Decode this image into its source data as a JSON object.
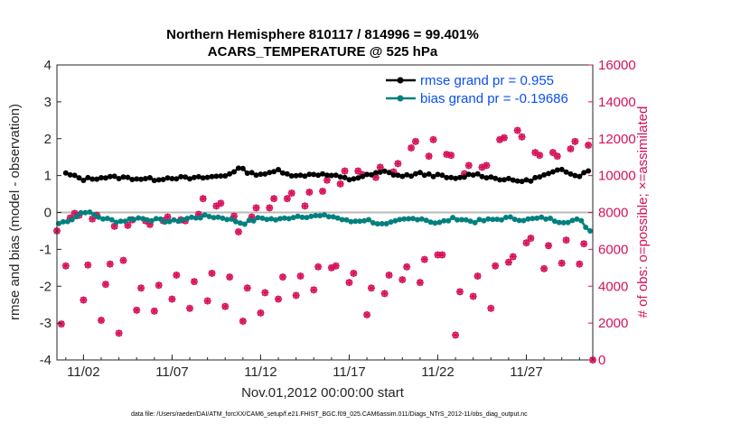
{
  "colors": {
    "rmse": "#000000",
    "bias": "#00807f",
    "obs": "#d6105a",
    "legend_text": "#0b4ff2",
    "zero_line": "#bbbbbb"
  },
  "chart_data": {
    "type": "line",
    "title": [
      "Northern Hemisphere 810117 / 814996 = 99.401%",
      "ACARS_TEMPERATURE @ 525 hPa"
    ],
    "xlabel": "Nov.01,2012 00:00:00 start",
    "ylabel_left": "rmse and bias (model - observation)",
    "ylabel_right": "# of obs: o=possible; ×=assimilated",
    "footnote": "data file: /Users/raeder/DAI/ATM_forcXX/CAM6_setup/f.e21.FHIST_BGC.f09_025.CAM6assim.011/Diags_NTrS_2012-11/obs_diag_output.nc",
    "xlim": [
      0.5,
      30.75
    ],
    "ylim_left": [
      -4,
      4
    ],
    "ylim_right": [
      0,
      16000
    ],
    "xticks": [
      {
        "value": 2,
        "label": "11/02"
      },
      {
        "value": 7,
        "label": "11/07"
      },
      {
        "value": 12,
        "label": "11/12"
      },
      {
        "value": 17,
        "label": "11/17"
      },
      {
        "value": 22,
        "label": "11/22"
      },
      {
        "value": 27,
        "label": "11/27"
      }
    ],
    "yticks_left": [
      "4",
      "3",
      "2",
      "1",
      "0",
      "-1",
      "-2",
      "-3",
      "-4"
    ],
    "yticks_right": [
      "16000",
      "14000",
      "12000",
      "10000",
      "8000",
      "6000",
      "4000",
      "2000",
      "0"
    ],
    "series": [
      {
        "name": "rmse",
        "legend": "rmse grand pr = 0.955",
        "axis": "left",
        "anchors": [
          [
            1,
            1.05
          ],
          [
            2,
            0.9
          ],
          [
            3,
            0.95
          ],
          [
            4,
            0.95
          ],
          [
            5,
            0.92
          ],
          [
            6,
            0.9
          ],
          [
            7,
            0.95
          ],
          [
            8,
            0.92
          ],
          [
            9,
            0.95
          ],
          [
            10,
            1.0
          ],
          [
            10.8,
            1.2
          ],
          [
            11.5,
            1.05
          ],
          [
            12.5,
            1.05
          ],
          [
            13,
            1.15
          ],
          [
            14,
            0.98
          ],
          [
            15,
            1.05
          ],
          [
            16,
            1.0
          ],
          [
            17,
            0.9
          ],
          [
            18,
            1.0
          ],
          [
            19,
            1.1
          ],
          [
            20,
            0.98
          ],
          [
            21,
            1.05
          ],
          [
            22,
            1.0
          ],
          [
            23,
            0.9
          ],
          [
            24,
            1.05
          ],
          [
            25,
            0.95
          ],
          [
            26,
            0.88
          ],
          [
            27,
            0.85
          ],
          [
            28,
            1.0
          ],
          [
            29,
            1.15
          ],
          [
            30,
            1.0
          ],
          [
            30.5,
            1.15
          ]
        ]
      },
      {
        "name": "bias",
        "legend": "bias grand pr = -0.19686",
        "axis": "left",
        "anchors": [
          [
            0.6,
            -0.3
          ],
          [
            1.5,
            -0.15
          ],
          [
            2,
            0.05
          ],
          [
            3,
            -0.15
          ],
          [
            4,
            -0.25
          ],
          [
            5,
            -0.15
          ],
          [
            6,
            -0.2
          ],
          [
            7,
            -0.25
          ],
          [
            8,
            -0.15
          ],
          [
            9,
            -0.1
          ],
          [
            10,
            -0.15
          ],
          [
            11,
            -0.3
          ],
          [
            12,
            -0.15
          ],
          [
            13,
            -0.2
          ],
          [
            14,
            -0.1
          ],
          [
            15,
            -0.1
          ],
          [
            16,
            -0.1
          ],
          [
            17,
            -0.25
          ],
          [
            18,
            -0.2
          ],
          [
            19,
            -0.35
          ],
          [
            20,
            -0.2
          ],
          [
            21,
            -0.15
          ],
          [
            22,
            -0.3
          ],
          [
            23,
            -0.15
          ],
          [
            24,
            -0.25
          ],
          [
            25,
            -0.2
          ],
          [
            26,
            -0.15
          ],
          [
            27,
            -0.2
          ],
          [
            28,
            -0.15
          ],
          [
            29,
            -0.25
          ],
          [
            30,
            -0.2
          ],
          [
            30.6,
            -0.5
          ]
        ]
      },
      {
        "name": "obs_possible",
        "axis": "right",
        "points": [
          [
            0.5,
            7000
          ],
          [
            0.75,
            1950
          ],
          [
            1,
            5100
          ],
          [
            1.25,
            7700
          ],
          [
            1.5,
            7950
          ],
          [
            1.75,
            7850
          ],
          [
            2,
            3250
          ],
          [
            2.25,
            5150
          ],
          [
            2.5,
            7650
          ],
          [
            2.75,
            7850
          ],
          [
            3,
            2150
          ],
          [
            3.25,
            4100
          ],
          [
            3.5,
            5200
          ],
          [
            3.75,
            7250
          ],
          [
            4,
            1450
          ],
          [
            4.25,
            5400
          ],
          [
            4.5,
            7300
          ],
          [
            4.75,
            7600
          ],
          [
            5,
            2700
          ],
          [
            5.25,
            3900
          ],
          [
            5.5,
            7550
          ],
          [
            5.75,
            7350
          ],
          [
            6,
            2650
          ],
          [
            6.25,
            4050
          ],
          [
            6.5,
            7550
          ],
          [
            6.75,
            7750
          ],
          [
            7,
            3300
          ],
          [
            7.25,
            4600
          ],
          [
            7.5,
            7600
          ],
          [
            7.75,
            7550
          ],
          [
            8,
            2800
          ],
          [
            8.25,
            4250
          ],
          [
            8.5,
            7900
          ],
          [
            8.75,
            8750
          ],
          [
            9,
            3200
          ],
          [
            9.25,
            4700
          ],
          [
            9.5,
            8350
          ],
          [
            9.75,
            8500
          ],
          [
            10,
            2900
          ],
          [
            10.25,
            4500
          ],
          [
            10.5,
            7800
          ],
          [
            10.75,
            6950
          ],
          [
            11,
            2100
          ],
          [
            11.25,
            3900
          ],
          [
            11.5,
            7750
          ],
          [
            11.75,
            8250
          ],
          [
            12,
            2550
          ],
          [
            12.25,
            3650
          ],
          [
            12.5,
            8250
          ],
          [
            12.75,
            8750
          ],
          [
            13,
            3300
          ],
          [
            13.25,
            4500
          ],
          [
            13.5,
            8750
          ],
          [
            13.75,
            9050
          ],
          [
            14,
            3500
          ],
          [
            14.25,
            4550
          ],
          [
            14.5,
            8350
          ],
          [
            14.75,
            9100
          ],
          [
            15,
            3800
          ],
          [
            15.25,
            5050
          ],
          [
            15.5,
            9150
          ],
          [
            15.75,
            9750
          ],
          [
            16,
            5000
          ],
          [
            16.25,
            5100
          ],
          [
            16.5,
            9550
          ],
          [
            16.75,
            10250
          ],
          [
            17,
            4200
          ],
          [
            17.25,
            4700
          ],
          [
            17.5,
            10250
          ],
          [
            17.75,
            10050
          ],
          [
            18,
            2450
          ],
          [
            18.25,
            3900
          ],
          [
            18.5,
            9900
          ],
          [
            18.75,
            10450
          ],
          [
            19,
            3600
          ],
          [
            19.25,
            4600
          ],
          [
            19.5,
            10200
          ],
          [
            19.75,
            10650
          ],
          [
            20,
            4350
          ],
          [
            20.25,
            5050
          ],
          [
            20.5,
            11500
          ],
          [
            20.75,
            11850
          ],
          [
            21,
            4200
          ],
          [
            21.25,
            5450
          ],
          [
            21.5,
            11050
          ],
          [
            21.75,
            11950
          ],
          [
            22,
            5700
          ],
          [
            22.25,
            5700
          ],
          [
            22.5,
            11150
          ],
          [
            22.75,
            11100
          ],
          [
            23,
            1350
          ],
          [
            23.25,
            3700
          ],
          [
            23.5,
            10100
          ],
          [
            23.75,
            10550
          ],
          [
            24,
            3450
          ],
          [
            24.25,
            4550
          ],
          [
            24.5,
            10450
          ],
          [
            24.75,
            10550
          ],
          [
            25,
            2800
          ],
          [
            25.25,
            5100
          ],
          [
            25.5,
            11950
          ],
          [
            25.75,
            12050
          ],
          [
            26,
            5300
          ],
          [
            26.25,
            5600
          ],
          [
            26.5,
            12450
          ],
          [
            26.75,
            12100
          ],
          [
            27,
            6350
          ],
          [
            27.25,
            6600
          ],
          [
            27.5,
            11250
          ],
          [
            27.75,
            11100
          ],
          [
            28,
            4950
          ],
          [
            28.25,
            6200
          ],
          [
            28.5,
            11250
          ],
          [
            28.75,
            11050
          ],
          [
            29,
            5250
          ],
          [
            29.25,
            6500
          ],
          [
            29.5,
            11450
          ],
          [
            29.75,
            11850
          ],
          [
            30,
            5200
          ],
          [
            30.25,
            6300
          ],
          [
            30.5,
            11650
          ],
          [
            30.75,
            0
          ]
        ]
      }
    ]
  }
}
